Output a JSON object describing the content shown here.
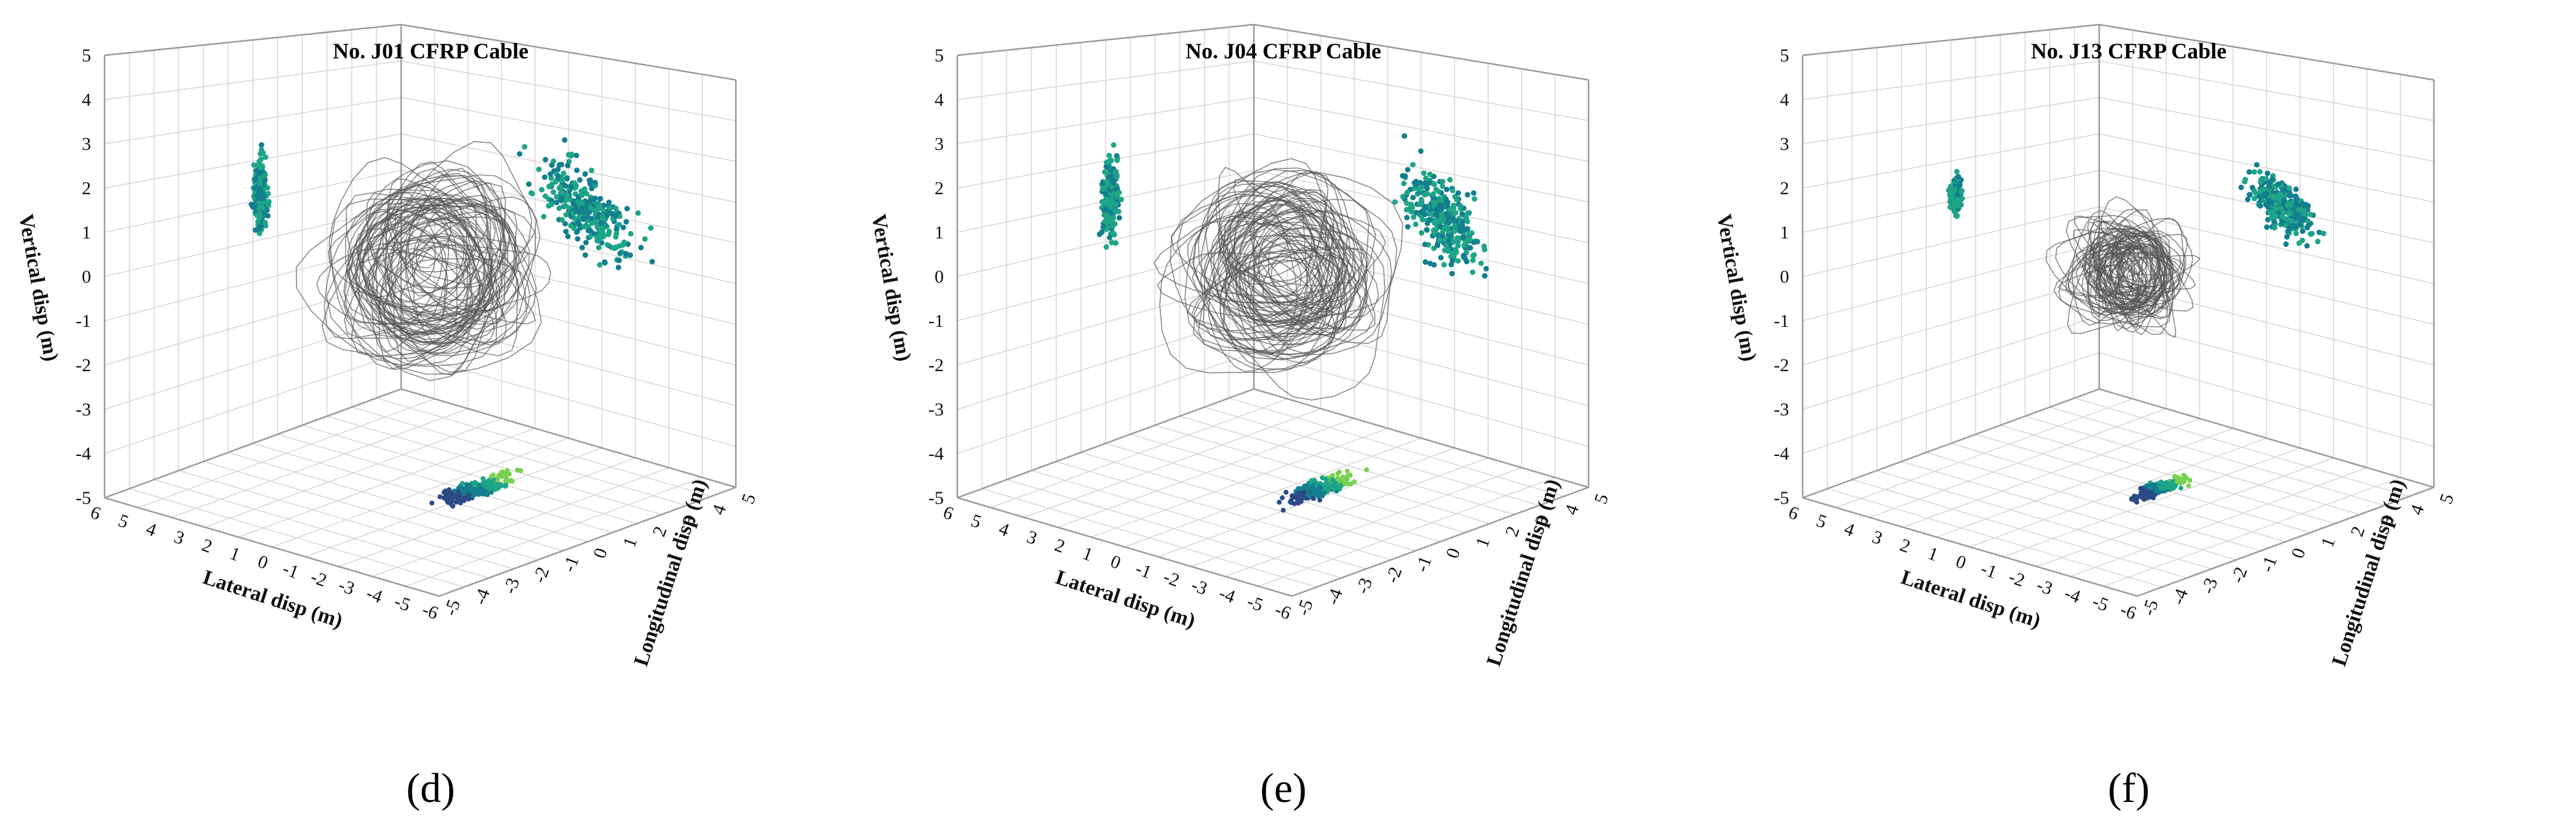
{
  "figure": {
    "panels": [
      {
        "id": "d",
        "sublabel": "(d)"
      },
      {
        "id": "e",
        "sublabel": "(e)"
      },
      {
        "id": "f",
        "sublabel": "(f)"
      }
    ]
  },
  "chart_data": [
    {
      "type": "scatter",
      "chart_kind": "3d-scatter-with-projections",
      "title": "No. J01 CFRP Cable",
      "xlabel": "Lateral disp (m)",
      "ylabel": "Longitudinal disp (m)",
      "zlabel": "Vertical disp (m)",
      "xlim": [
        -6,
        6
      ],
      "ylim": [
        -5,
        5
      ],
      "zlim": [
        -5,
        5
      ],
      "x_ticks": [
        "6",
        "5",
        "4",
        "3",
        "2",
        "1",
        "0",
        "-1",
        "-2",
        "-3",
        "-4",
        "-5",
        "-6"
      ],
      "y_ticks": [
        "-5",
        "-4",
        "-3",
        "-2",
        "-1",
        "0",
        "1",
        "2",
        "3",
        "4",
        "5"
      ],
      "z_ticks": [
        "5",
        "4",
        "3",
        "2",
        "1",
        "0",
        "-1",
        "-2",
        "-3",
        "-4",
        "-5"
      ],
      "grid": true,
      "trajectory": {
        "color": "#555555",
        "center": [
          0,
          0,
          0.5
        ],
        "spread": [
          1.2,
          1.0,
          1.1
        ]
      },
      "projection_colors": [
        "#2c4a86",
        "#127e8e",
        "#1ea587",
        "#79d152"
      ],
      "projections": {
        "lateral_vertical": {
          "center": [
            0.3,
            1.2
          ],
          "spread": [
            0.25,
            0.8
          ]
        },
        "longitudinal_vertical": {
          "center": [
            0.5,
            1.0
          ],
          "spread": [
            1.4,
            0.7
          ]
        },
        "lateral_longitudinal": {
          "center": [
            1.2,
            0.8
          ],
          "spread": [
            1.4,
            0.55
          ]
        }
      }
    },
    {
      "type": "scatter",
      "chart_kind": "3d-scatter-with-projections",
      "title": "No. J04 CFRP Cable",
      "xlabel": "Lateral disp (m)",
      "ylabel": "Longitudinal disp (m)",
      "zlabel": "Vertical disp (m)",
      "xlim": [
        -6,
        6
      ],
      "ylim": [
        -5,
        5
      ],
      "zlim": [
        -5,
        5
      ],
      "x_ticks": [
        "6",
        "5",
        "4",
        "3",
        "2",
        "1",
        "0",
        "-1",
        "-2",
        "-3",
        "-4",
        "-5",
        "-6"
      ],
      "y_ticks": [
        "-5",
        "-4",
        "-3",
        "-2",
        "-1",
        "0",
        "1",
        "2",
        "3",
        "4",
        "5"
      ],
      "z_ticks": [
        "5",
        "4",
        "3",
        "2",
        "1",
        "0",
        "-1",
        "-2",
        "-3",
        "-4",
        "-5"
      ],
      "grid": true,
      "trajectory": {
        "color": "#555555",
        "center": [
          0,
          0,
          0.3
        ],
        "spread": [
          1.1,
          1.0,
          1.2
        ]
      },
      "projection_colors": [
        "#2c4a86",
        "#127e8e",
        "#1ea587",
        "#79d152"
      ],
      "projections": {
        "lateral_vertical": {
          "center": [
            0.2,
            1.0
          ],
          "spread": [
            0.3,
            0.85
          ]
        },
        "longitudinal_vertical": {
          "center": [
            0.6,
            0.8
          ],
          "spread": [
            1.2,
            0.8
          ]
        },
        "lateral_longitudinal": {
          "center": [
            1.0,
            0.6
          ],
          "spread": [
            1.3,
            0.5
          ]
        }
      }
    },
    {
      "type": "scatter",
      "chart_kind": "3d-scatter-with-projections",
      "title": "No. J13 CFRP Cable",
      "xlabel": "Lateral disp (m)",
      "ylabel": "Longitudinal disp (m)",
      "zlabel": "Vertical disp (m)",
      "xlim": [
        -6,
        6
      ],
      "ylim": [
        -5,
        5
      ],
      "zlim": [
        -5,
        5
      ],
      "x_ticks": [
        "6",
        "5",
        "4",
        "3",
        "2",
        "1",
        "0",
        "-1",
        "-2",
        "-3",
        "-4",
        "-5",
        "-6"
      ],
      "y_ticks": [
        "-5",
        "-4",
        "-3",
        "-2",
        "-1",
        "0",
        "1",
        "2",
        "3",
        "4",
        "5"
      ],
      "z_ticks": [
        "5",
        "4",
        "3",
        "2",
        "1",
        "0",
        "-1",
        "-2",
        "-3",
        "-4",
        "-5"
      ],
      "grid": true,
      "trajectory": {
        "color": "#555555",
        "center": [
          0,
          0,
          0.5
        ],
        "spread": [
          0.8,
          0.7,
          0.5
        ]
      },
      "projection_colors": [
        "#2c4a86",
        "#127e8e",
        "#1ea587",
        "#79d152"
      ],
      "projections": {
        "lateral_vertical": {
          "center": [
            0.2,
            1.1
          ],
          "spread": [
            0.2,
            0.4
          ]
        },
        "longitudinal_vertical": {
          "center": [
            0.5,
            1.1
          ],
          "spread": [
            0.9,
            0.45
          ]
        },
        "lateral_longitudinal": {
          "center": [
            1.0,
            0.5
          ],
          "spread": [
            0.9,
            0.35
          ]
        }
      }
    }
  ]
}
